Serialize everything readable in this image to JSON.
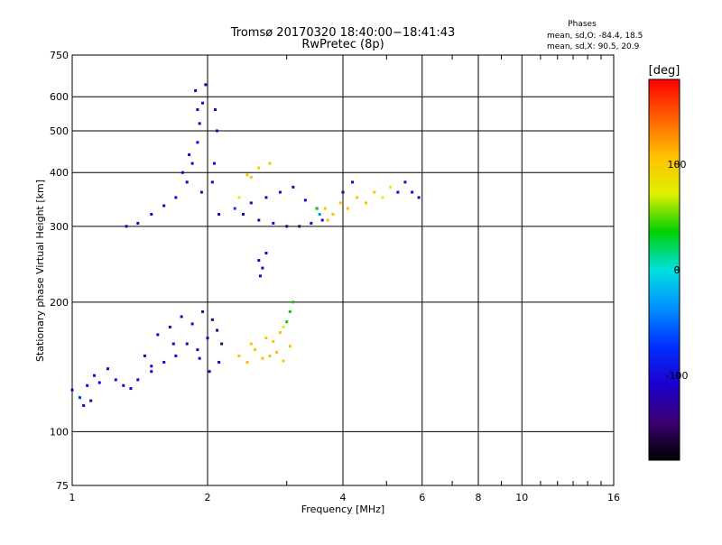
{
  "chart_data": {
    "type": "scatter",
    "title": "Tromsø 20170320 18:40:00−18:41:43",
    "subtitle": "RwPretec (8p)",
    "xlabel": "Frequency [MHz]",
    "ylabel": "Stationary phase Virtual Height [km]",
    "x_scale": "log",
    "y_scale": "log",
    "xlim": [
      1,
      16
    ],
    "ylim": [
      75,
      750
    ],
    "x_ticks": [
      1,
      2,
      4,
      6,
      8,
      10,
      16
    ],
    "y_ticks": [
      75,
      100,
      200,
      300,
      400,
      500,
      600,
      750
    ],
    "grid": true,
    "stats": {
      "heading": "Phases",
      "line_o": "mean, sd,O: -84.4, 18.5",
      "line_x": "mean, sd,X:  90.5, 20.9"
    },
    "colorbar": {
      "label": "[deg]",
      "range": [
        -180,
        180
      ],
      "ticks": [
        100,
        0,
        -100
      ],
      "colormap": [
        "#000000",
        "#3b0070",
        "#1a00d0",
        "#0030ff",
        "#0090ff",
        "#00e0e0",
        "#00d000",
        "#e0f000",
        "#ffc000",
        "#ff6000",
        "#ff0000"
      ]
    },
    "series": [
      {
        "points": [
          [
            1.0,
            125,
            -95
          ],
          [
            1.04,
            120,
            -90
          ],
          [
            1.08,
            128,
            -100
          ],
          [
            1.12,
            135,
            -95
          ],
          [
            1.06,
            115,
            -98
          ],
          [
            1.1,
            118,
            -92
          ],
          [
            1.15,
            130,
            -100
          ],
          [
            1.2,
            140,
            -96
          ],
          [
            1.3,
            128,
            -105
          ],
          [
            1.4,
            132,
            -100
          ],
          [
            1.5,
            138,
            -110
          ],
          [
            1.6,
            145,
            -100
          ],
          [
            1.7,
            150,
            -105
          ],
          [
            1.8,
            160,
            -110
          ],
          [
            1.9,
            155,
            -100
          ],
          [
            2.0,
            165,
            -120
          ],
          [
            1.45,
            150,
            -100
          ],
          [
            1.55,
            168,
            -105
          ],
          [
            1.65,
            175,
            -110
          ],
          [
            1.75,
            185,
            -102
          ],
          [
            1.85,
            178,
            -115
          ],
          [
            1.95,
            190,
            -125
          ],
          [
            2.05,
            182,
            -130
          ],
          [
            2.1,
            172,
            -128
          ],
          [
            1.35,
            126,
            -100
          ],
          [
            1.25,
            132,
            -98
          ],
          [
            1.5,
            142,
            -104
          ],
          [
            1.68,
            160,
            -112
          ],
          [
            1.92,
            148,
            -118
          ],
          [
            2.02,
            138,
            -122
          ],
          [
            2.12,
            145,
            -126
          ],
          [
            2.15,
            160,
            -128
          ],
          [
            1.32,
            300,
            -100
          ],
          [
            1.4,
            305,
            -105
          ],
          [
            1.5,
            320,
            -100
          ],
          [
            1.6,
            335,
            -110
          ],
          [
            1.7,
            350,
            -105
          ],
          [
            1.8,
            380,
            -110
          ],
          [
            1.85,
            420,
            -100
          ],
          [
            1.9,
            470,
            -105
          ],
          [
            1.92,
            520,
            -110
          ],
          [
            1.95,
            580,
            -115
          ],
          [
            1.88,
            620,
            -108
          ],
          [
            1.98,
            640,
            -112
          ],
          [
            1.9,
            560,
            -106
          ],
          [
            1.82,
            440,
            -104
          ],
          [
            1.76,
            400,
            -108
          ],
          [
            1.94,
            360,
            -102
          ],
          [
            2.07,
            420,
            -110
          ],
          [
            2.1,
            500,
            -100
          ],
          [
            2.08,
            560,
            -105
          ],
          [
            2.12,
            320,
            -110
          ],
          [
            2.05,
            380,
            -95
          ],
          [
            2.35,
            150,
            110
          ],
          [
            2.45,
            145,
            115
          ],
          [
            2.55,
            155,
            120
          ],
          [
            2.65,
            148,
            118
          ],
          [
            2.75,
            150,
            112
          ],
          [
            2.85,
            153,
            108
          ],
          [
            2.95,
            146,
            115
          ],
          [
            3.05,
            158,
            110
          ],
          [
            2.5,
            160,
            122
          ],
          [
            2.7,
            165,
            118
          ],
          [
            2.9,
            170,
            106
          ],
          [
            3.0,
            180,
            40
          ],
          [
            3.05,
            190,
            30
          ],
          [
            2.95,
            175,
            70
          ],
          [
            3.1,
            200,
            20
          ],
          [
            2.8,
            162,
            100
          ],
          [
            2.4,
            320,
            -100
          ],
          [
            2.6,
            310,
            -110
          ],
          [
            2.8,
            305,
            -120
          ],
          [
            3.0,
            300,
            -130
          ],
          [
            3.2,
            300,
            -128
          ],
          [
            3.4,
            305,
            -125
          ],
          [
            3.6,
            310,
            -120
          ],
          [
            2.5,
            340,
            -95
          ],
          [
            2.7,
            350,
            -100
          ],
          [
            2.9,
            360,
            -110
          ],
          [
            3.1,
            370,
            -115
          ],
          [
            3.3,
            345,
            -120
          ],
          [
            3.5,
            330,
            -118
          ],
          [
            2.45,
            395,
            120
          ],
          [
            2.6,
            410,
            115
          ],
          [
            2.75,
            420,
            110
          ],
          [
            2.5,
            390,
            100
          ],
          [
            2.3,
            330,
            -80
          ],
          [
            2.35,
            350,
            60
          ],
          [
            3.65,
            330,
            120
          ],
          [
            3.8,
            320,
            110
          ],
          [
            3.95,
            340,
            115
          ],
          [
            4.1,
            330,
            120
          ],
          [
            4.3,
            350,
            110
          ],
          [
            4.5,
            340,
            100
          ],
          [
            4.7,
            360,
            90
          ],
          [
            4.9,
            350,
            80
          ],
          [
            5.1,
            370,
            70
          ],
          [
            5.3,
            360,
            -110
          ],
          [
            5.5,
            380,
            -115
          ],
          [
            5.7,
            360,
            -120
          ],
          [
            5.9,
            350,
            -110
          ],
          [
            3.7,
            310,
            95
          ],
          [
            4.0,
            360,
            -100
          ],
          [
            4.2,
            380,
            -95
          ],
          [
            2.6,
            250,
            -110
          ],
          [
            2.65,
            240,
            -105
          ],
          [
            2.7,
            260,
            -100
          ],
          [
            2.62,
            230,
            -120
          ],
          [
            3.5,
            330,
            30
          ],
          [
            3.55,
            320,
            -20
          ]
        ]
      }
    ]
  }
}
